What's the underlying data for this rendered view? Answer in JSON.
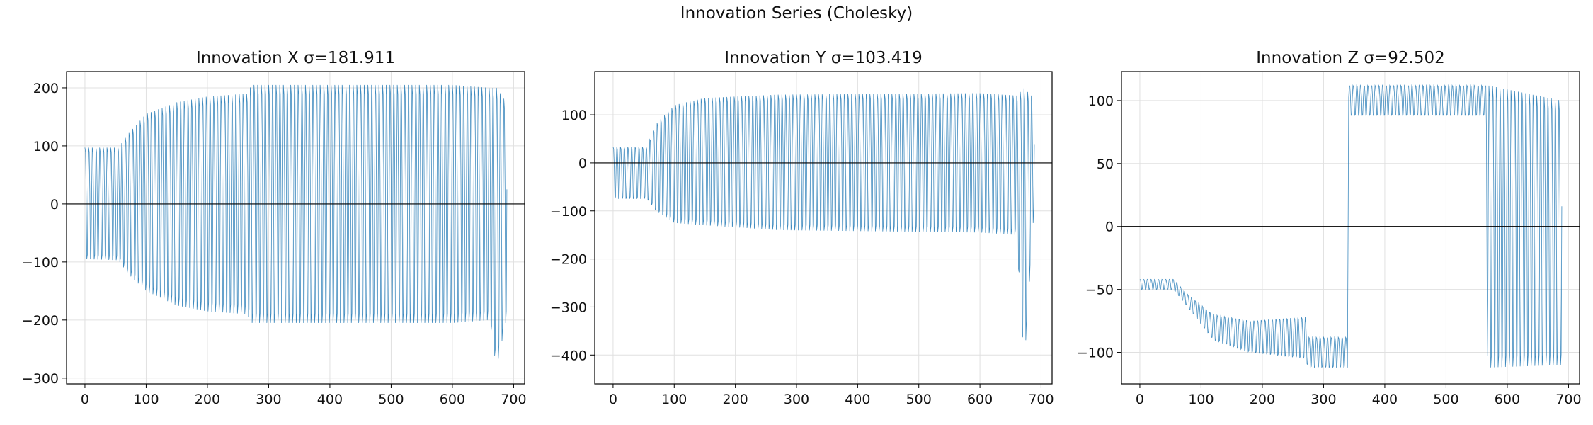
{
  "suptitle": "Innovation Series (Cholesky)",
  "colors": {
    "series": "#1f77b4",
    "zero_line": "#000000",
    "grid": "#e0e0e0",
    "axis": "#000000"
  },
  "chart_data": [
    {
      "type": "line",
      "title": "Innovation X  σ=181.911",
      "xlabel": "",
      "ylabel": "",
      "xlim": [
        -30,
        718
      ],
      "ylim": [
        -310,
        228
      ],
      "xticks": [
        0,
        100,
        200,
        300,
        400,
        500,
        600,
        700
      ],
      "yticks": [
        -300,
        -200,
        -100,
        0,
        100,
        200
      ],
      "grid": true,
      "zero_line": 0,
      "n_points": 690,
      "envelope": [
        {
          "x": 0,
          "upper": 97,
          "lower": -95
        },
        {
          "x": 55,
          "upper": 97,
          "lower": -97
        },
        {
          "x": 70,
          "upper": 120,
          "lower": -120
        },
        {
          "x": 100,
          "upper": 155,
          "lower": -150
        },
        {
          "x": 150,
          "upper": 175,
          "lower": -175
        },
        {
          "x": 200,
          "upper": 185,
          "lower": -185
        },
        {
          "x": 265,
          "upper": 190,
          "lower": -190
        },
        {
          "x": 272,
          "upper": 205,
          "lower": -205
        },
        {
          "x": 600,
          "upper": 205,
          "lower": -205
        },
        {
          "x": 660,
          "upper": 200,
          "lower": -200
        },
        {
          "x": 672,
          "upper": 200,
          "lower": -282
        },
        {
          "x": 688,
          "upper": 175,
          "lower": -200
        }
      ]
    },
    {
      "type": "line",
      "title": "Innovation Y  σ=103.419",
      "xlabel": "",
      "ylabel": "",
      "xlim": [
        -30,
        718
      ],
      "ylim": [
        -460,
        190
      ],
      "xticks": [
        0,
        100,
        200,
        300,
        400,
        500,
        600,
        700
      ],
      "yticks": [
        -400,
        -300,
        -200,
        -100,
        0,
        100
      ],
      "grid": true,
      "zero_line": 0,
      "n_points": 690,
      "envelope": [
        {
          "x": 0,
          "upper": 33,
          "lower": -75
        },
        {
          "x": 55,
          "upper": 33,
          "lower": -75
        },
        {
          "x": 70,
          "upper": 80,
          "lower": -100
        },
        {
          "x": 100,
          "upper": 120,
          "lower": -125
        },
        {
          "x": 150,
          "upper": 135,
          "lower": -130
        },
        {
          "x": 270,
          "upper": 142,
          "lower": -140
        },
        {
          "x": 600,
          "upper": 145,
          "lower": -145
        },
        {
          "x": 660,
          "upper": 140,
          "lower": -150
        },
        {
          "x": 672,
          "upper": 155,
          "lower": -430
        },
        {
          "x": 688,
          "upper": 135,
          "lower": -105
        }
      ]
    },
    {
      "type": "line",
      "title": "Innovation Z  σ=92.502",
      "xlabel": "",
      "ylabel": "",
      "xlim": [
        -30,
        718
      ],
      "ylim": [
        -125,
        123
      ],
      "xticks": [
        0,
        100,
        200,
        300,
        400,
        500,
        600,
        700
      ],
      "yticks": [
        -100,
        -50,
        0,
        50,
        100
      ],
      "grid": true,
      "zero_line": 0,
      "n_points": 690,
      "envelope": [
        {
          "x": 0,
          "upper": -42,
          "lower": -50
        },
        {
          "x": 55,
          "upper": -42,
          "lower": -50
        },
        {
          "x": 80,
          "upper": -55,
          "lower": -65
        },
        {
          "x": 120,
          "upper": -70,
          "lower": -90
        },
        {
          "x": 180,
          "upper": -75,
          "lower": -100
        },
        {
          "x": 270,
          "upper": -72,
          "lower": -105
        },
        {
          "x": 275,
          "upper": -88,
          "lower": -112
        },
        {
          "x": 339,
          "upper": -88,
          "lower": -112
        },
        {
          "x": 341,
          "upper": 112,
          "lower": 88
        },
        {
          "x": 565,
          "upper": 112,
          "lower": 88
        },
        {
          "x": 568,
          "upper": 112,
          "lower": -112
        },
        {
          "x": 688,
          "upper": 100,
          "lower": -110
        }
      ]
    }
  ]
}
